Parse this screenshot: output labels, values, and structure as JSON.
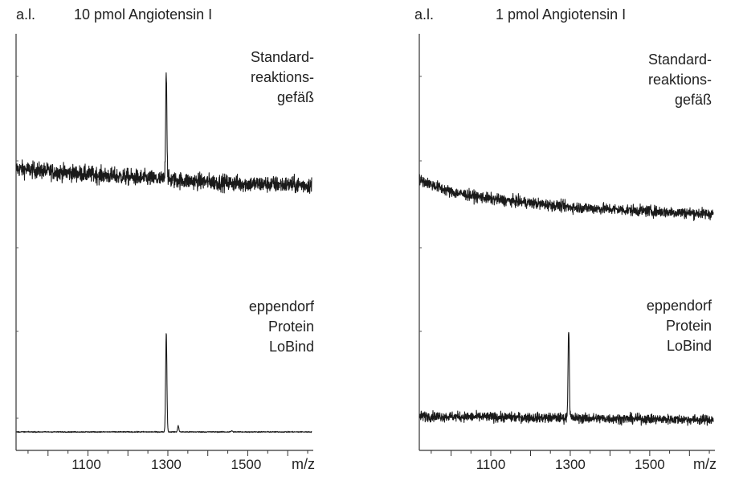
{
  "chart_data": [
    {
      "type": "line",
      "ylabel": "a.l.",
      "title": "10 pmol Angiotensin I",
      "xlabel": "m/z",
      "xlim": [
        920,
        1660
      ],
      "xticks": [
        1100,
        1300,
        1500
      ],
      "grid": false,
      "series": [
        {
          "name": "Standard-reaktions-gefäß",
          "label_lines": [
            "Standard-",
            "reaktions-",
            "gefäß"
          ],
          "baseline": [
            [
              920,
              0.53
            ],
            [
              1100,
              0.49
            ],
            [
              1300,
              0.45
            ],
            [
              1500,
              0.42
            ],
            [
              1660,
              0.41
            ]
          ],
          "noise": 0.06,
          "peaks": [
            {
              "x": 1296,
              "height": 0.8
            }
          ]
        },
        {
          "name": "eppendorf Protein LoBind",
          "label_lines": [
            "eppendorf",
            "Protein",
            "LoBind"
          ],
          "baseline": [
            [
              920,
              0.02
            ],
            [
              1660,
              0.02
            ]
          ],
          "noise": 0.004,
          "peaks": [
            {
              "x": 1296,
              "height": 0.82
            },
            {
              "x": 1326,
              "height": 0.05
            },
            {
              "x": 1460,
              "height": 0.01
            }
          ]
        }
      ]
    },
    {
      "type": "line",
      "ylabel": "a.l.",
      "title": "1 pmol Angiotensin I",
      "xlabel": "m/z",
      "xlim": [
        920,
        1660
      ],
      "xticks": [
        1100,
        1300,
        1500
      ],
      "grid": false,
      "series": [
        {
          "name": "Standard-reaktions-gefäß",
          "label_lines": [
            "Standard-",
            "reaktions-",
            "gefäß"
          ],
          "baseline": [
            [
              920,
              0.45
            ],
            [
              1000,
              0.36
            ],
            [
              1100,
              0.31
            ],
            [
              1300,
              0.25
            ],
            [
              1500,
              0.22
            ],
            [
              1660,
              0.2
            ]
          ],
          "noise": 0.04,
          "peaks": []
        },
        {
          "name": "eppendorf Protein LoBind",
          "label_lines": [
            "eppendorf",
            "Protein",
            "LoBind"
          ],
          "baseline": [
            [
              920,
              0.15
            ],
            [
              1660,
              0.12
            ]
          ],
          "noise": 0.04,
          "peaks": [
            {
              "x": 1296,
              "height": 0.75
            }
          ]
        }
      ]
    }
  ]
}
